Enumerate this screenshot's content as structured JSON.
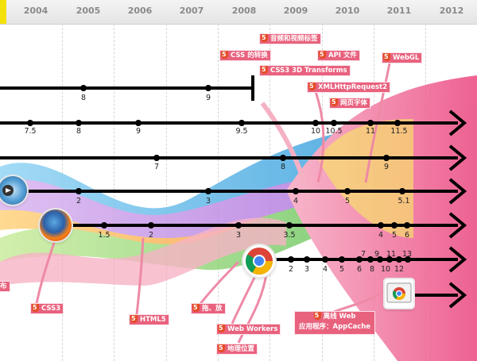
{
  "years": [
    "2004",
    "2005",
    "2006",
    "2007",
    "2008",
    "2009",
    "2010",
    "2011",
    "2012"
  ],
  "browsers": [
    {
      "name": "ie",
      "ticks": [
        "8",
        "9"
      ]
    },
    {
      "name": "opera",
      "ticks": [
        "7.5",
        "8",
        "9",
        "9.5",
        "10",
        "10.5",
        "11",
        "11.5"
      ]
    },
    {
      "name": "firefox-old",
      "ticks": [
        "7",
        "8",
        "9"
      ]
    },
    {
      "name": "safari",
      "ticks": [
        "2",
        "3",
        "4",
        "5",
        "5.1"
      ]
    },
    {
      "name": "firefox",
      "ticks": [
        "1.5",
        "2",
        "3",
        "3.5",
        "4",
        "5",
        "6"
      ]
    },
    {
      "name": "chrome",
      "ticks_top": [
        "7",
        "9",
        "11",
        "13"
      ],
      "ticks_bottom": [
        "2",
        "3",
        "4",
        "5",
        "6",
        "8",
        "10",
        "12"
      ]
    }
  ],
  "features": {
    "audio_video": "音频和视频标签",
    "css_transform": "CSS 的转换",
    "api_docs": "API 文件",
    "webgl": "WebGL",
    "css3d": "CSS3 3D Transforms",
    "xhr2": "XMLHttpRequest2",
    "web_fonts": "网页字体",
    "css3": "CSS3",
    "html5": "HTML5",
    "drag_drop": "拖、放",
    "web_workers": "Web Workers",
    "geolocation": "地理位置",
    "offline_web_line1": "离线 Web",
    "offline_web_line2": "应用程序：AppCache",
    "cut_off": "布"
  },
  "colors": {
    "tag": "#e8627e",
    "accent": "#f5e10a",
    "html5": "#e44d26"
  }
}
